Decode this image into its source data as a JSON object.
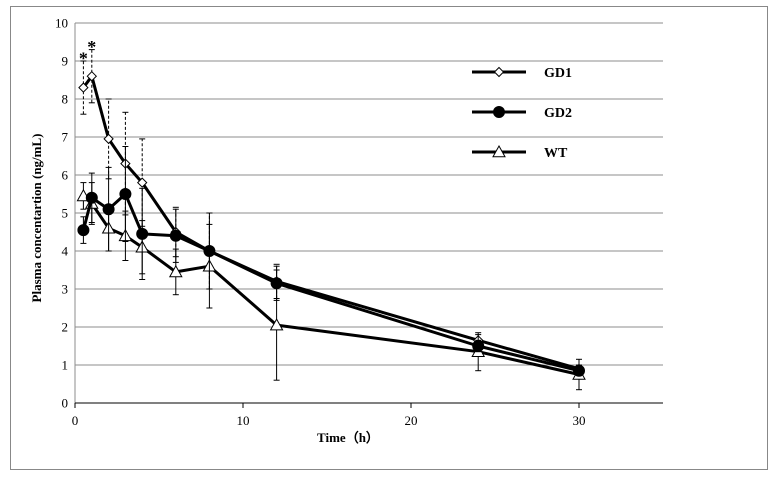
{
  "chart_data": {
    "type": "line",
    "xlabel": "Time（h）",
    "ylabel": "Plasma concentartion (ng/mL)",
    "xlim": [
      0,
      35
    ],
    "ylim": [
      0,
      10
    ],
    "xticks": [
      0,
      10,
      20,
      30
    ],
    "yticks": [
      0,
      1,
      2,
      3,
      4,
      5,
      6,
      7,
      8,
      9,
      10
    ],
    "grid": "horizontal",
    "legend_position": "top-right",
    "series": [
      {
        "name": "GD1",
        "marker": "diamond-open",
        "error_style": "dashed",
        "x": [
          0.5,
          1,
          2,
          3,
          4,
          6,
          8,
          12,
          24,
          30
        ],
        "y": [
          8.3,
          8.6,
          6.95,
          6.3,
          5.8,
          4.5,
          4.0,
          3.2,
          1.65,
          0.9
        ],
        "err": [
          0.7,
          0.7,
          1.05,
          1.35,
          1.15,
          0.65,
          1.0,
          0.45,
          0.15,
          0.1
        ]
      },
      {
        "name": "GD2",
        "marker": "circle-filled",
        "error_style": "solid",
        "x": [
          0.5,
          1,
          2,
          3,
          4,
          6,
          8,
          12,
          24,
          30
        ],
        "y": [
          4.55,
          5.4,
          5.1,
          5.5,
          4.45,
          4.4,
          4.0,
          3.15,
          1.5,
          0.85
        ],
        "err": [
          0.35,
          0.65,
          1.1,
          1.25,
          1.2,
          0.7,
          1.0,
          0.45,
          0.15,
          0.1
        ]
      },
      {
        "name": "WT",
        "marker": "triangle-open",
        "error_style": "solid",
        "x": [
          0.5,
          1,
          2,
          3,
          4,
          6,
          8,
          12,
          24,
          30
        ],
        "y": [
          5.45,
          5.25,
          4.6,
          4.4,
          4.1,
          3.45,
          3.6,
          2.05,
          1.35,
          0.75
        ],
        "err": [
          0.35,
          0.55,
          0.6,
          0.65,
          0.7,
          0.6,
          1.1,
          1.45,
          0.5,
          0.4
        ]
      }
    ],
    "annotations": [
      {
        "text": "*",
        "x": 0.5,
        "y": 9.15
      },
      {
        "text": "*",
        "x": 1.0,
        "y": 9.45
      }
    ]
  }
}
